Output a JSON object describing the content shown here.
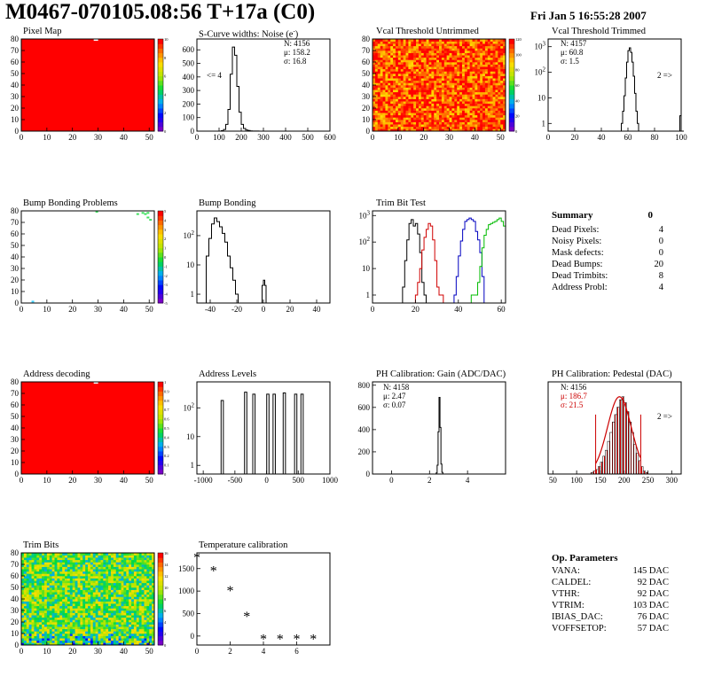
{
  "header": {
    "title": "M0467-070105.08:56 T+17a (C0)",
    "date": "Fri Jan  5 16:55:28 2007"
  },
  "panels": {
    "pixel_map": {
      "title": "Pixel Map"
    },
    "scurve": {
      "title": "S-Curve widths: Noise (e",
      "title_sup": "-",
      "title_end": ")",
      "n": "N: 4156",
      "mu": "μ: 158.2",
      "sigma": "σ: 16.8",
      "note": "<= 4"
    },
    "vcal_untrimmed": {
      "title": "Vcal Threshold Untrimmed"
    },
    "vcal_trimmed": {
      "title": "Vcal Threshold Trimmed",
      "n": "N: 4157",
      "mu": "μ: 60.8",
      "sigma": "σ:  1.5",
      "note": "2 =>"
    },
    "bump_problems": {
      "title": "Bump Bonding Problems"
    },
    "bump_bonding": {
      "title": "Bump Bonding"
    },
    "trim_bit_test": {
      "title": "Trim Bit Test"
    },
    "address_decoding": {
      "title": "Address decoding"
    },
    "address_levels": {
      "title": "Address Levels"
    },
    "ph_gain": {
      "title": "PH Calibration: Gain (ADC/DAC)",
      "n": "N: 4158",
      "mu": "μ: 2.47",
      "sigma": "σ: 0.07"
    },
    "ph_pedestal": {
      "title": "PH Calibration: Pedestal (DAC)",
      "n": "N: 4156",
      "mu": "μ: 186.7",
      "sigma": "σ: 21.5",
      "note": "2 =>"
    },
    "trim_bits": {
      "title": "Trim Bits"
    },
    "temperature": {
      "title": "Temperature calibration"
    }
  },
  "summary": {
    "title": "Summary",
    "total": "0",
    "rows": [
      {
        "label": "Dead Pixels:",
        "value": "4"
      },
      {
        "label": "Noisy Pixels:",
        "value": "0"
      },
      {
        "label": "Mask defects:",
        "value": "0"
      },
      {
        "label": "Dead Bumps:",
        "value": "20"
      },
      {
        "label": "Dead Trimbits:",
        "value": "8"
      },
      {
        "label": "Address Probl:",
        "value": "4"
      }
    ]
  },
  "op_params": {
    "title": "Op. Parameters",
    "rows": [
      {
        "label": "VANA:",
        "value": "145 DAC"
      },
      {
        "label": "CALDEL:",
        "value": "92 DAC"
      },
      {
        "label": "VTHR:",
        "value": "92 DAC"
      },
      {
        "label": "VTRIM:",
        "value": "103 DAC"
      },
      {
        "label": "IBIAS_DAC:",
        "value": "76 DAC"
      },
      {
        "label": "VOFFSETOP:",
        "value": "57 DAC"
      }
    ]
  },
  "chart_data": [
    {
      "id": "pixel_map",
      "type": "heatmap",
      "title": "Pixel Map",
      "xlim": [
        0,
        52
      ],
      "ylim": [
        0,
        80
      ],
      "xticks": [
        0,
        10,
        20,
        30,
        40,
        50
      ],
      "yticks": [
        0,
        10,
        20,
        30,
        40,
        50,
        60,
        70,
        80
      ],
      "zlim": [
        0,
        10
      ],
      "fill": "uniform",
      "value": 10,
      "fill_color": "#ff0000",
      "dead_pixels": [
        [
          29,
          79
        ]
      ]
    },
    {
      "id": "scurve",
      "type": "line",
      "title": "S-Curve widths: Noise (e-)",
      "xlim": [
        0,
        600
      ],
      "ylim": [
        0,
        680
      ],
      "xticks": [
        0,
        100,
        200,
        300,
        400,
        500,
        600
      ],
      "yticks": [
        0,
        100,
        200,
        300,
        400,
        500,
        600
      ],
      "x": [
        100,
        110,
        120,
        130,
        140,
        150,
        160,
        170,
        180,
        190,
        200,
        210,
        220,
        230,
        240,
        250,
        260,
        280
      ],
      "values": [
        0,
        3,
        12,
        50,
        160,
        420,
        620,
        560,
        330,
        140,
        50,
        20,
        8,
        5,
        2,
        1,
        1,
        0
      ]
    },
    {
      "id": "vcal_untrimmed",
      "type": "heatmap",
      "title": "Vcal Threshold Untrimmed",
      "xlim": [
        0,
        52
      ],
      "ylim": [
        0,
        80
      ],
      "xticks": [
        0,
        10,
        20,
        30,
        40,
        50
      ],
      "yticks": [
        0,
        10,
        20,
        30,
        40,
        50,
        60,
        70,
        80
      ],
      "zticks": [
        0,
        20,
        40,
        60,
        80,
        100,
        120
      ],
      "fill": "noise",
      "low": 90,
      "high": 130
    },
    {
      "id": "vcal_trimmed",
      "type": "line",
      "title": "Vcal Threshold Trimmed",
      "log_y": true,
      "xlim": [
        0,
        100
      ],
      "ylim": [
        0.5,
        2000
      ],
      "xticks": [
        0,
        20,
        40,
        60,
        80,
        100
      ],
      "yticks": [
        1,
        10,
        100,
        1000
      ],
      "x": [
        54,
        55,
        56,
        57,
        58,
        59,
        60,
        61,
        62,
        63,
        64,
        65,
        66,
        67,
        68,
        99,
        100
      ],
      "values": [
        0.5,
        1,
        3,
        12,
        60,
        250,
        700,
        900,
        600,
        250,
        70,
        15,
        3,
        1,
        0.5,
        2,
        0.5
      ]
    },
    {
      "id": "bump_problems",
      "type": "heatmap",
      "title": "Bump Bonding Problems",
      "xlim": [
        0,
        52
      ],
      "ylim": [
        0,
        80
      ],
      "xticks": [
        0,
        10,
        20,
        30,
        40,
        50
      ],
      "yticks": [
        0,
        10,
        20,
        30,
        40,
        50,
        60,
        70,
        80
      ],
      "zticks": [
        -5,
        -4,
        -3,
        -2,
        -1,
        0,
        1,
        2,
        3,
        4,
        5
      ],
      "fill": "empty",
      "hits": [
        [
          29,
          79
        ],
        [
          45,
          77
        ],
        [
          47,
          78
        ],
        [
          48,
          77
        ],
        [
          49,
          78
        ],
        [
          49,
          74
        ],
        [
          50,
          72
        ],
        [
          4,
          1
        ]
      ]
    },
    {
      "id": "bump_bonding",
      "type": "line",
      "title": "Bump Bonding",
      "log_y": true,
      "xlim": [
        -50,
        50
      ],
      "ylim": [
        0.5,
        700
      ],
      "xticks": [
        -40,
        -20,
        0,
        20,
        40
      ],
      "yticks": [
        1,
        10,
        100
      ],
      "x": [
        -45,
        -43,
        -41,
        -39,
        -37,
        -35,
        -33,
        -31,
        -29,
        -27,
        -25,
        -23,
        -21,
        -19,
        -17,
        -2,
        -1,
        0,
        1,
        2
      ],
      "values": [
        0.5,
        20,
        80,
        250,
        400,
        300,
        200,
        120,
        60,
        20,
        8,
        3,
        1,
        0.5,
        0.5,
        0.5,
        2,
        3,
        2,
        0.5
      ]
    },
    {
      "id": "trim_bit_test",
      "type": "line",
      "title": "Trim Bit Test",
      "log_y": true,
      "xlim": [
        0,
        62
      ],
      "ylim": [
        0.5,
        1500
      ],
      "xticks": [
        0,
        20,
        40,
        60
      ],
      "yticks": [
        1,
        10,
        100,
        1000
      ],
      "series": [
        {
          "color": "#000000",
          "x": [
            12,
            14,
            15,
            16,
            17,
            18,
            19,
            20,
            21,
            22,
            23,
            24,
            25
          ],
          "values": [
            0.5,
            2,
            20,
            120,
            500,
            700,
            400,
            500,
            200,
            40,
            3,
            1,
            0.5
          ]
        },
        {
          "color": "#d00000",
          "x": [
            19,
            20,
            21,
            22,
            23,
            24,
            25,
            26,
            27,
            28,
            29,
            30,
            31,
            33
          ],
          "values": [
            0.5,
            1,
            3,
            10,
            50,
            150,
            300,
            500,
            400,
            120,
            20,
            2,
            1,
            0.5
          ]
        },
        {
          "color": "#0000c0",
          "x": [
            36,
            38,
            39,
            40,
            41,
            42,
            43,
            44,
            45,
            46,
            47,
            48,
            49,
            50,
            51,
            52
          ],
          "values": [
            0.5,
            1,
            5,
            30,
            110,
            300,
            600,
            700,
            800,
            700,
            600,
            250,
            120,
            40,
            5,
            0.5
          ]
        },
        {
          "color": "#00bb00",
          "x": [
            43,
            46,
            48,
            49,
            50,
            51,
            52,
            53,
            54,
            55,
            56,
            57,
            58,
            59,
            60,
            61
          ],
          "values": [
            0.5,
            1,
            1,
            3,
            12,
            60,
            180,
            300,
            450,
            500,
            550,
            600,
            700,
            800,
            600,
            400
          ]
        }
      ]
    },
    {
      "id": "address_decoding",
      "type": "heatmap",
      "title": "Address decoding",
      "xlim": [
        0,
        52
      ],
      "ylim": [
        0,
        80
      ],
      "xticks": [
        0,
        10,
        20,
        30,
        40,
        50
      ],
      "yticks": [
        0,
        10,
        20,
        30,
        40,
        50,
        60,
        70,
        80
      ],
      "zticks": [
        0,
        0.1,
        0.2,
        0.3,
        0.4,
        0.5,
        0.6,
        0.7,
        0.8,
        0.9,
        1
      ],
      "fill": "uniform",
      "value": 1,
      "fill_color": "#ff0000",
      "dead_pixels": [
        [
          29,
          79
        ]
      ]
    },
    {
      "id": "address_levels",
      "type": "line",
      "title": "Address Levels",
      "log_y": true,
      "xlim": [
        -1100,
        1000
      ],
      "ylim": [
        0.5,
        800
      ],
      "xticks": [
        -1000,
        -500,
        0,
        500,
        1000
      ],
      "yticks": [
        1,
        10,
        100
      ],
      "peaks": [
        -700,
        -330,
        -200,
        20,
        120,
        280,
        460,
        560
      ],
      "peak_values": [
        180,
        350,
        300,
        300,
        300,
        330,
        300,
        300
      ]
    },
    {
      "id": "ph_gain",
      "type": "line",
      "title": "PH Calibration: Gain (ADC/DAC)",
      "xlim": [
        -1,
        6
      ],
      "ylim": [
        0,
        830
      ],
      "xticks": [
        0,
        2,
        4
      ],
      "yticks": [
        0,
        200,
        400,
        600,
        800
      ],
      "x": [
        2.3,
        2.35,
        2.4,
        2.45,
        2.5,
        2.55,
        2.6,
        2.65,
        2.7
      ],
      "values": [
        0,
        10,
        80,
        380,
        690,
        420,
        90,
        15,
        0
      ]
    },
    {
      "id": "ph_pedestal",
      "type": "bar",
      "title": "PH Calibration: Pedestal (DAC)",
      "xlim": [
        40,
        320
      ],
      "ylim": [
        0,
        62
      ],
      "xticks": [
        50,
        100,
        150,
        200,
        250,
        300
      ],
      "yticks": [],
      "x": [
        130,
        135,
        140,
        145,
        150,
        155,
        160,
        165,
        170,
        175,
        180,
        185,
        190,
        195,
        200,
        205,
        210,
        215,
        220,
        225,
        230,
        235,
        240,
        245
      ],
      "values": [
        1,
        2,
        3,
        5,
        8,
        12,
        16,
        22,
        28,
        35,
        40,
        45,
        50,
        52,
        48,
        42,
        35,
        28,
        20,
        14,
        9,
        5,
        2,
        1
      ],
      "fit_color": "#cc0000",
      "fit_range": [
        140,
        235
      ]
    },
    {
      "id": "trim_bits",
      "type": "heatmap",
      "title": "Trim Bits",
      "xlim": [
        0,
        52
      ],
      "ylim": [
        0,
        80
      ],
      "xticks": [
        0,
        10,
        20,
        30,
        40,
        50
      ],
      "yticks": [
        0,
        10,
        20,
        30,
        40,
        50,
        60,
        70,
        80
      ],
      "zticks": [
        0,
        2,
        4,
        6,
        8,
        10,
        12,
        14,
        16
      ],
      "fill": "noise",
      "low": 5,
      "high": 12
    },
    {
      "id": "temperature",
      "type": "scatter",
      "title": "Temperature calibration",
      "xlim": [
        0,
        8
      ],
      "ylim": [
        -200,
        1850
      ],
      "xticks": [
        0,
        2,
        4,
        6
      ],
      "yticks": [
        0,
        500,
        1000,
        1500
      ],
      "x": [
        0,
        1,
        2,
        3,
        4,
        5,
        6,
        7
      ],
      "values": [
        1740,
        1450,
        1000,
        430,
        -70,
        -70,
        -70,
        -70
      ]
    }
  ]
}
